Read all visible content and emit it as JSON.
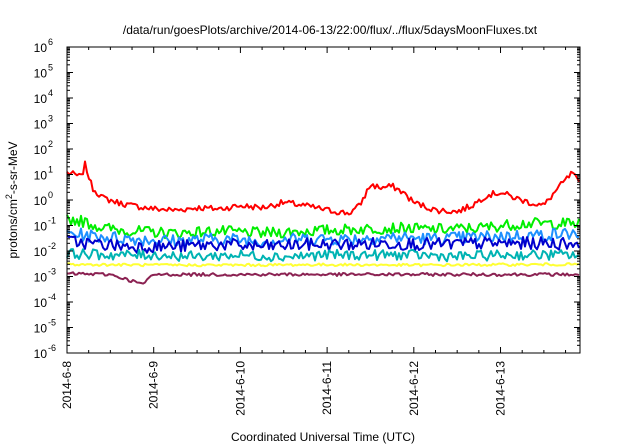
{
  "chart_data": {
    "type": "line",
    "title": "/data/run/goesPlots/archive/2014-06-13/22:00/flux/../flux/5daysMoonFluxes.txt",
    "xlabel": "Coordinated Universal Time (UTC)",
    "ylabel": {
      "base": "protons/cm",
      "sup": "2",
      "rest": "-s-sr-MeV"
    },
    "y_scale": "log",
    "ylim": [
      1e-06,
      1000000.0
    ],
    "y_ticks": [
      {
        "value": 1e-06,
        "base": "10",
        "exp": "-6"
      },
      {
        "value": 1e-05,
        "base": "10",
        "exp": "-5"
      },
      {
        "value": 0.0001,
        "base": "10",
        "exp": "-4"
      },
      {
        "value": 0.001,
        "base": "10",
        "exp": "-3"
      },
      {
        "value": 0.01,
        "base": "10",
        "exp": "-2"
      },
      {
        "value": 0.1,
        "base": "10",
        "exp": "-1"
      },
      {
        "value": 1,
        "base": "10",
        "exp": "0"
      },
      {
        "value": 10,
        "base": "10",
        "exp": "1"
      },
      {
        "value": 100,
        "base": "10",
        "exp": "2"
      },
      {
        "value": 1000,
        "base": "10",
        "exp": "3"
      },
      {
        "value": 10000,
        "base": "10",
        "exp": "4"
      },
      {
        "value": 100000,
        "base": "10",
        "exp": "5"
      },
      {
        "value": 1000000,
        "base": "10",
        "exp": "6"
      }
    ],
    "xlim": [
      "2014-06-08T00:00",
      "2014-06-13T22:00"
    ],
    "x_ticks": [
      "2014-6-8",
      "2014-6-9",
      "2014-6-10",
      "2014-6-11",
      "2014-6-12",
      "2014-6-13"
    ],
    "grid": false,
    "legend": "none",
    "series": [
      {
        "color": "#ff0000",
        "x": [
          "2014-06-08T00:00",
          "2014-06-08T02:00",
          "2014-06-08T04:00",
          "2014-06-08T05:00",
          "2014-06-08T07:00",
          "2014-06-08T10:00",
          "2014-06-08T14:00",
          "2014-06-08T18:00",
          "2014-06-09T00:00",
          "2014-06-09T06:00",
          "2014-06-09T12:00",
          "2014-06-09T18:00",
          "2014-06-10T00:00",
          "2014-06-10T06:00",
          "2014-06-10T12:00",
          "2014-06-10T18:00",
          "2014-06-11T00:00",
          "2014-06-11T06:00",
          "2014-06-11T09:00",
          "2014-06-11T12:00",
          "2014-06-11T15:00",
          "2014-06-11T18:00",
          "2014-06-11T21:00",
          "2014-06-12T00:00",
          "2014-06-12T06:00",
          "2014-06-12T12:00",
          "2014-06-12T16:00",
          "2014-06-12T20:00",
          "2014-06-13T00:00",
          "2014-06-13T04:00",
          "2014-06-13T08:00",
          "2014-06-13T12:00",
          "2014-06-13T16:00",
          "2014-06-13T20:00",
          "2014-06-13T22:00"
        ],
        "y": [
          12,
          10,
          8,
          25,
          3,
          1.2,
          0.8,
          0.6,
          0.45,
          0.4,
          0.5,
          0.45,
          0.6,
          0.5,
          0.8,
          0.6,
          0.4,
          0.3,
          0.6,
          4,
          3,
          3.5,
          2,
          0.8,
          0.4,
          0.35,
          0.6,
          1.5,
          2,
          1.2,
          0.8,
          0.6,
          3,
          12,
          3.5
        ]
      },
      {
        "color": "#00ee00",
        "x": [
          "2014-06-08T00:00",
          "2014-06-08T04:00",
          "2014-06-08T10:00",
          "2014-06-08T18:00",
          "2014-06-09T06:00",
          "2014-06-09T18:00",
          "2014-06-10T06:00",
          "2014-06-10T18:00",
          "2014-06-11T06:00",
          "2014-06-11T18:00",
          "2014-06-12T06:00",
          "2014-06-12T18:00",
          "2014-06-13T06:00",
          "2014-06-13T22:00"
        ],
        "y": [
          0.18,
          0.15,
          0.08,
          0.06,
          0.05,
          0.06,
          0.05,
          0.06,
          0.07,
          0.08,
          0.07,
          0.08,
          0.12,
          0.12
        ]
      },
      {
        "color": "#1e90ff",
        "x": [
          "2014-06-08T00:00",
          "2014-06-08T06:00",
          "2014-06-08T18:00",
          "2014-06-09T06:00",
          "2014-06-09T18:00",
          "2014-06-10T06:00",
          "2014-06-10T18:00",
          "2014-06-11T06:00",
          "2014-06-11T18:00",
          "2014-06-12T06:00",
          "2014-06-12T18:00",
          "2014-06-13T06:00",
          "2014-06-13T22:00"
        ],
        "y": [
          0.05,
          0.04,
          0.03,
          0.025,
          0.03,
          0.025,
          0.03,
          0.03,
          0.035,
          0.03,
          0.035,
          0.04,
          0.05
        ]
      },
      {
        "color": "#0000cd",
        "x": [
          "2014-06-08T00:00",
          "2014-06-08T06:00",
          "2014-06-08T18:00",
          "2014-06-09T06:00",
          "2014-06-09T18:00",
          "2014-06-10T06:00",
          "2014-06-10T18:00",
          "2014-06-11T06:00",
          "2014-06-11T18:00",
          "2014-06-12T06:00",
          "2014-06-12T18:00",
          "2014-06-13T06:00",
          "2014-06-13T22:00"
        ],
        "y": [
          0.025,
          0.02,
          0.015,
          0.015,
          0.018,
          0.015,
          0.018,
          0.018,
          0.02,
          0.018,
          0.02,
          0.02,
          0.02
        ]
      },
      {
        "color": "#00b3b3",
        "x": [
          "2014-06-08T00:00",
          "2014-06-08T12:00",
          "2014-06-09T00:00",
          "2014-06-09T12:00",
          "2014-06-10T00:00",
          "2014-06-10T12:00",
          "2014-06-11T00:00",
          "2014-06-11T12:00",
          "2014-06-12T00:00",
          "2014-06-12T12:00",
          "2014-06-13T00:00",
          "2014-06-13T22:00"
        ],
        "y": [
          0.008,
          0.007,
          0.007,
          0.006,
          0.007,
          0.006,
          0.007,
          0.007,
          0.007,
          0.006,
          0.007,
          0.007
        ]
      },
      {
        "color": "#ffff33",
        "x": [
          "2014-06-08T00:00",
          "2014-06-09T00:00",
          "2014-06-10T00:00",
          "2014-06-11T00:00",
          "2014-06-12T00:00",
          "2014-06-13T00:00",
          "2014-06-13T22:00"
        ],
        "y": [
          0.003,
          0.0028,
          0.0028,
          0.0029,
          0.0028,
          0.0029,
          0.003
        ]
      },
      {
        "color": "#8b2252",
        "x": [
          "2014-06-08T00:00",
          "2014-06-08T12:00",
          "2014-06-08T21:00",
          "2014-06-09T00:00",
          "2014-06-10T00:00",
          "2014-06-11T00:00",
          "2014-06-12T00:00",
          "2014-06-13T00:00",
          "2014-06-13T22:00"
        ],
        "y": [
          0.0013,
          0.0012,
          0.0005,
          0.0012,
          0.0012,
          0.0012,
          0.0012,
          0.0012,
          0.0012
        ]
      }
    ]
  }
}
